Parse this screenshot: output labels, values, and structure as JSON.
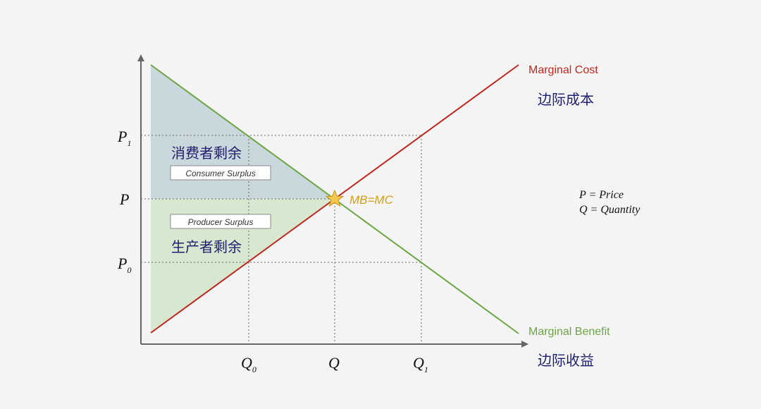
{
  "axes": {
    "y_ticks": [
      {
        "main": "P",
        "sub": "1"
      },
      {
        "main": "P",
        "sub": ""
      },
      {
        "main": "P",
        "sub": "0"
      }
    ],
    "x_ticks": [
      {
        "main": "Q",
        "sub": "0"
      },
      {
        "main": "Q",
        "sub": ""
      },
      {
        "main": "Q",
        "sub": "1"
      }
    ]
  },
  "curves": {
    "cost": {
      "label": "Marginal Cost",
      "label_cn": "边际成本",
      "color": "#c0281f"
    },
    "benefit": {
      "label": "Marginal Benefit",
      "label_cn": "边际收益",
      "color": "#6da544"
    }
  },
  "equilibrium": {
    "label": "MB=MC",
    "color": "#d4a017"
  },
  "regions": {
    "consumer": {
      "label_cn": "消费者剩余",
      "label_en": "Consumer Surplus",
      "fill": "#c5d6dc"
    },
    "producer": {
      "label_cn": "生产者剩余",
      "label_en": "Producer Surplus",
      "fill": "#d6e6cd"
    }
  },
  "legend": {
    "line1": "P = Price",
    "line2": "Q = Quantity"
  }
}
